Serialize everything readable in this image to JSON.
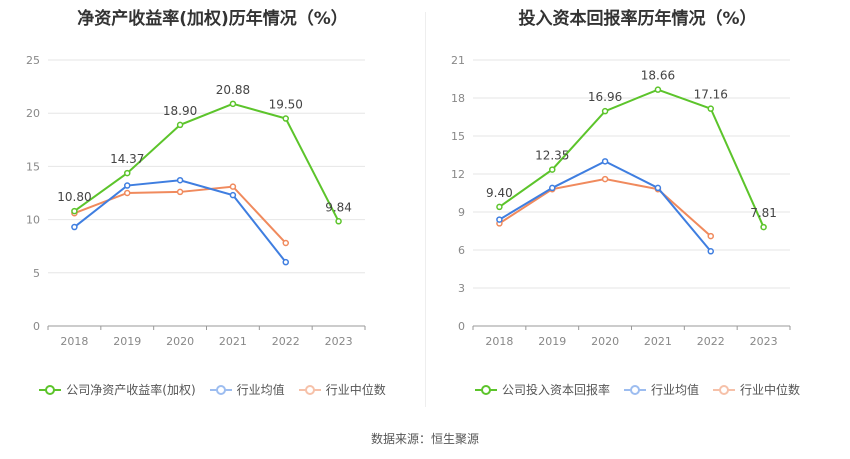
{
  "source_label": "数据来源：恒生聚源",
  "charts": [
    {
      "type": "line",
      "title": "净资产收益率(加权)历年情况（%）",
      "categories": [
        "2018",
        "2019",
        "2020",
        "2021",
        "2022",
        "2023"
      ],
      "ylim": [
        0,
        25
      ],
      "yticks": [
        0,
        5,
        10,
        15,
        20,
        25
      ],
      "grid": true,
      "legend_position": "bottom",
      "series": [
        {
          "name": "公司净资产收益率(加权)",
          "color": "#5cc42b",
          "values": [
            10.8,
            14.37,
            18.9,
            20.88,
            19.5,
            9.84
          ],
          "labels": [
            "10.80",
            "14.37",
            "18.90",
            "20.88",
            "19.50",
            "9.84"
          ]
        },
        {
          "name": "行业均值",
          "color": "#3f7ee0",
          "values": [
            9.3,
            13.2,
            13.7,
            12.3,
            6.0,
            null
          ],
          "labels": []
        },
        {
          "name": "行业中位数",
          "color": "#f08a5d",
          "values": [
            10.6,
            12.5,
            12.6,
            13.1,
            7.8,
            null
          ],
          "labels": []
        }
      ]
    },
    {
      "type": "line",
      "title": "投入资本回报率历年情况（%）",
      "categories": [
        "2018",
        "2019",
        "2020",
        "2021",
        "2022",
        "2023"
      ],
      "ylim": [
        0,
        21
      ],
      "yticks": [
        0,
        3,
        6,
        9,
        12,
        15,
        18,
        21
      ],
      "grid": true,
      "legend_position": "bottom",
      "series": [
        {
          "name": "公司投入资本回报率",
          "color": "#5cc42b",
          "values": [
            9.4,
            12.35,
            16.96,
            18.66,
            17.16,
            7.81
          ],
          "labels": [
            "9.40",
            "12.35",
            "16.96",
            "18.66",
            "17.16",
            "7.81"
          ]
        },
        {
          "name": "行业均值",
          "color": "#3f7ee0",
          "values": [
            8.4,
            10.9,
            13.0,
            10.9,
            5.9,
            null
          ],
          "labels": []
        },
        {
          "name": "行业中位数",
          "color": "#f08a5d",
          "values": [
            8.1,
            10.8,
            11.6,
            10.8,
            7.1,
            null
          ],
          "labels": []
        }
      ]
    }
  ]
}
